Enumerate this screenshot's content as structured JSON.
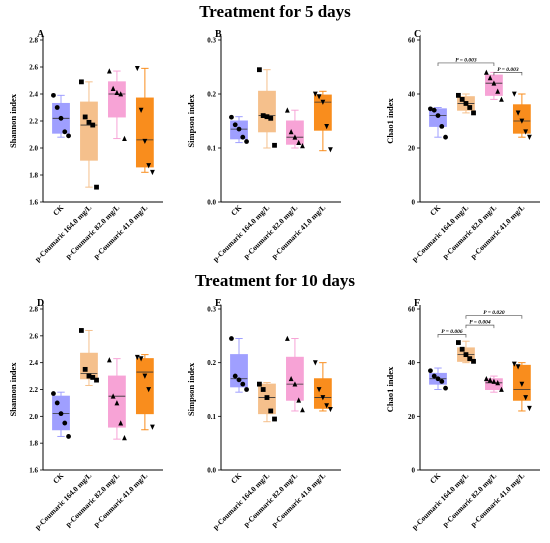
{
  "row_titles": [
    "Treatment for 5 days",
    "Treatment for 10 days"
  ],
  "groups": [
    "CK",
    "p-Coumaric 164.0 mg/L",
    "p-Coumaric 82.0 mg/L",
    "p-Coumaric 41.0 mg/L"
  ],
  "colors": {
    "fills": [
      "#9f9fff",
      "#f5c08c",
      "#f7a3d6",
      "#f98d1d"
    ],
    "markers": [
      "circle",
      "square",
      "triangle-up",
      "triangle-down"
    ]
  },
  "chart_data": [
    {
      "panel": "A",
      "type": "box",
      "ylabel": "Shannon index",
      "ylim": [
        1.6,
        2.8
      ],
      "yticks": [
        "1.6",
        "1.8",
        "2.0",
        "2.2",
        "2.4",
        "2.6",
        "2.8"
      ],
      "boxes": [
        {
          "min": 2.08,
          "q1": 2.11,
          "median": 2.22,
          "q3": 2.33,
          "max": 2.39,
          "points": [
            2.39,
            2.3,
            2.22,
            2.12,
            2.09
          ]
        },
        {
          "min": 1.71,
          "q1": 1.91,
          "median": 2.17,
          "q3": 2.34,
          "max": 2.49,
          "points": [
            2.49,
            2.23,
            2.19,
            2.17,
            1.71
          ]
        },
        {
          "min": 2.07,
          "q1": 2.23,
          "median": 2.4,
          "q3": 2.49,
          "max": 2.57,
          "points": [
            2.57,
            2.44,
            2.41,
            2.4,
            2.07
          ]
        },
        {
          "min": 1.82,
          "q1": 1.86,
          "median": 2.06,
          "q3": 2.37,
          "max": 2.59,
          "points": [
            2.59,
            2.28,
            2.05,
            1.87,
            1.82
          ]
        }
      ],
      "annotations": []
    },
    {
      "panel": "B",
      "type": "box",
      "ylabel": "Simpson index",
      "ylim": [
        0.0,
        0.3
      ],
      "yticks": [
        "0.0",
        "0.1",
        "0.2",
        "0.3"
      ],
      "boxes": [
        {
          "min": 0.11,
          "q1": 0.117,
          "median": 0.135,
          "q3": 0.15,
          "max": 0.158,
          "points": [
            0.157,
            0.143,
            0.135,
            0.12,
            0.112
          ]
        },
        {
          "min": 0.1,
          "q1": 0.13,
          "median": 0.16,
          "q3": 0.205,
          "max": 0.245,
          "points": [
            0.245,
            0.16,
            0.158,
            0.155,
            0.105
          ]
        },
        {
          "min": 0.1,
          "q1": 0.107,
          "median": 0.12,
          "q3": 0.15,
          "max": 0.17,
          "points": [
            0.17,
            0.13,
            0.12,
            0.11,
            0.104
          ]
        },
        {
          "min": 0.095,
          "q1": 0.133,
          "median": 0.185,
          "q3": 0.198,
          "max": 0.205,
          "points": [
            0.2,
            0.195,
            0.185,
            0.14,
            0.097
          ]
        }
      ],
      "annotations": []
    },
    {
      "panel": "C",
      "type": "box",
      "ylabel": "Chao1 index",
      "ylim": [
        0,
        60
      ],
      "yticks": [
        "0",
        "20",
        "40",
        "60"
      ],
      "boxes": [
        {
          "min": 24,
          "q1": 28,
          "median": 32,
          "q3": 34.5,
          "max": 35,
          "points": [
            34.5,
            34,
            32,
            28,
            24
          ]
        },
        {
          "min": 33,
          "q1": 34,
          "median": 36.5,
          "q3": 39,
          "max": 40,
          "points": [
            39.5,
            38,
            36.5,
            35,
            33
          ]
        },
        {
          "min": 38,
          "q1": 39.5,
          "median": 44,
          "q3": 47,
          "max": 48,
          "points": [
            48,
            46,
            44,
            41,
            38
          ]
        },
        {
          "min": 24,
          "q1": 25.5,
          "median": 30,
          "q3": 36,
          "max": 40,
          "points": [
            40,
            33,
            30,
            26,
            24
          ]
        }
      ],
      "annotations": [
        {
          "text": "P = 0.003",
          "from": 0,
          "to": 2,
          "y": 51.5
        },
        {
          "text": "P = 0.003",
          "from": 2,
          "to": 3,
          "y": 48
        }
      ]
    },
    {
      "panel": "D",
      "type": "box",
      "ylabel": "Shannon index",
      "ylim": [
        1.6,
        2.8
      ],
      "yticks": [
        "1.6",
        "1.8",
        "2.0",
        "2.2",
        "2.4",
        "2.6",
        "2.8"
      ],
      "boxes": [
        {
          "min": 1.85,
          "q1": 1.9,
          "median": 2.02,
          "q3": 2.15,
          "max": 2.18,
          "points": [
            2.17,
            2.1,
            2.02,
            1.95,
            1.85
          ]
        },
        {
          "min": 2.23,
          "q1": 2.28,
          "median": 2.32,
          "q3": 2.47,
          "max": 2.64,
          "points": [
            2.64,
            2.35,
            2.3,
            2.29,
            2.27
          ]
        },
        {
          "min": 1.83,
          "q1": 1.92,
          "median": 2.15,
          "q3": 2.3,
          "max": 2.43,
          "points": [
            2.42,
            2.15,
            2.1,
            1.95,
            1.84
          ]
        },
        {
          "min": 1.9,
          "q1": 2.02,
          "median": 2.33,
          "q3": 2.43,
          "max": 2.46,
          "points": [
            2.44,
            2.43,
            2.3,
            2.2,
            1.92
          ]
        }
      ],
      "annotations": []
    },
    {
      "panel": "E",
      "type": "box",
      "ylabel": "Simpson index",
      "ylim": [
        0.0,
        0.3
      ],
      "yticks": [
        "0.0",
        "0.1",
        "0.2",
        "0.3"
      ],
      "boxes": [
        {
          "min": 0.145,
          "q1": 0.155,
          "median": 0.17,
          "q3": 0.215,
          "max": 0.245,
          "points": [
            0.245,
            0.175,
            0.168,
            0.16,
            0.15
          ]
        },
        {
          "min": 0.09,
          "q1": 0.105,
          "median": 0.135,
          "q3": 0.16,
          "max": 0.163,
          "points": [
            0.16,
            0.15,
            0.135,
            0.11,
            0.095
          ]
        },
        {
          "min": 0.11,
          "q1": 0.13,
          "median": 0.16,
          "q3": 0.21,
          "max": 0.245,
          "points": [
            0.245,
            0.17,
            0.16,
            0.13,
            0.112
          ]
        },
        {
          "min": 0.11,
          "q1": 0.115,
          "median": 0.135,
          "q3": 0.17,
          "max": 0.2,
          "points": [
            0.2,
            0.15,
            0.135,
            0.12,
            0.113
          ]
        }
      ],
      "annotations": []
    },
    {
      "panel": "F",
      "type": "box",
      "ylabel": "Chao1 index",
      "ylim": [
        0,
        60
      ],
      "yticks": [
        "0",
        "20",
        "40",
        "60"
      ],
      "boxes": [
        {
          "min": 30,
          "q1": 32,
          "median": 34,
          "q3": 36,
          "max": 38,
          "points": [
            37,
            35,
            34,
            33,
            30.5
          ]
        },
        {
          "min": 40,
          "q1": 40.5,
          "median": 43,
          "q3": 45.5,
          "max": 48,
          "points": [
            47.5,
            45,
            43,
            41.5,
            40.5
          ]
        },
        {
          "min": 29,
          "q1": 30,
          "median": 32.5,
          "q3": 34,
          "max": 35,
          "points": [
            34,
            33.5,
            33,
            32.5,
            30
          ]
        },
        {
          "min": 22,
          "q1": 26,
          "median": 30,
          "q3": 39,
          "max": 40,
          "points": [
            39.5,
            38.5,
            32,
            27,
            23
          ]
        }
      ],
      "annotations": [
        {
          "text": "P = 0.006",
          "from": 0,
          "to": 1,
          "y": 50.5
        },
        {
          "text": "P = 0.004",
          "from": 1,
          "to": 2,
          "y": 54
        },
        {
          "text": "P = 0.020",
          "from": 1,
          "to": 3,
          "y": 57.5
        }
      ]
    }
  ]
}
